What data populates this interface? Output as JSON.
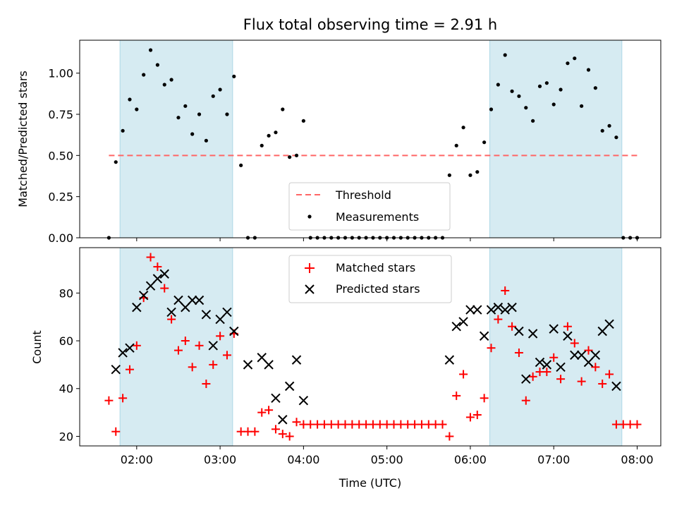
{
  "chart_data": [
    {
      "type": "scatter",
      "title": "Flux total observing time = 2.91 h",
      "xlabel": "",
      "ylabel": "Matched/Predicted stars",
      "xlim": [
        "01:19",
        "08:17"
      ],
      "ylim": [
        0,
        1.2
      ],
      "yticks": [
        "0.00",
        "0.25",
        "0.50",
        "0.75",
        "1.00"
      ],
      "shaded_intervals": [
        [
          "01:48",
          "03:09"
        ],
        [
          "06:14",
          "07:49"
        ]
      ],
      "shade_color": "#add8e6",
      "threshold": {
        "label": "Threshold",
        "y": 0.5,
        "x_start": "01:40",
        "x_end": "08:00",
        "color": "#ff6666"
      },
      "series": [
        {
          "name": "Measurements",
          "color": "#000000",
          "x": [
            "01:40",
            "01:45",
            "01:50",
            "01:55",
            "02:00",
            "02:05",
            "02:10",
            "02:15",
            "02:20",
            "02:25",
            "02:30",
            "02:35",
            "02:40",
            "02:45",
            "02:50",
            "02:55",
            "03:00",
            "03:05",
            "03:10",
            "03:15",
            "03:20",
            "03:25",
            "03:30",
            "03:35",
            "03:40",
            "03:45",
            "03:50",
            "03:55",
            "04:00",
            "04:05",
            "04:10",
            "04:15",
            "04:20",
            "04:25",
            "04:30",
            "04:35",
            "04:40",
            "04:45",
            "04:50",
            "04:55",
            "05:00",
            "05:05",
            "05:10",
            "05:15",
            "05:20",
            "05:25",
            "05:30",
            "05:35",
            "05:40",
            "05:45",
            "05:50",
            "05:55",
            "06:00",
            "06:05",
            "06:10",
            "06:15",
            "06:20",
            "06:25",
            "06:30",
            "06:35",
            "06:40",
            "06:45",
            "06:50",
            "06:55",
            "07:00",
            "07:05",
            "07:10",
            "07:15",
            "07:20",
            "07:25",
            "07:30",
            "07:35",
            "07:40",
            "07:45",
            "07:50",
            "07:55",
            "08:00"
          ],
          "y": [
            0.0,
            0.46,
            0.65,
            0.84,
            0.78,
            0.99,
            1.14,
            1.05,
            0.93,
            0.96,
            0.73,
            0.8,
            0.63,
            0.75,
            0.59,
            0.86,
            0.9,
            0.75,
            0.98,
            0.44,
            0.0,
            0.0,
            0.56,
            0.62,
            0.64,
            0.78,
            0.49,
            0.5,
            0.71,
            0.0,
            0.0,
            0.0,
            0.0,
            0.0,
            0.0,
            0.0,
            0.0,
            0.0,
            0.0,
            0.0,
            0.0,
            0.0,
            0.0,
            0.0,
            0.0,
            0.0,
            0.0,
            0.0,
            0.0,
            0.38,
            0.56,
            0.67,
            0.38,
            0.4,
            0.58,
            0.78,
            0.93,
            1.11,
            0.89,
            0.86,
            0.79,
            0.71,
            0.92,
            0.94,
            0.81,
            0.9,
            1.06,
            1.09,
            0.8,
            1.02,
            0.91,
            0.65,
            0.68,
            0.61,
            0.0,
            0.0,
            0.0
          ]
        }
      ],
      "legend": {
        "position": "lower center",
        "entries": [
          "Threshold",
          "Measurements"
        ]
      }
    },
    {
      "type": "scatter",
      "title": "",
      "xlabel": "Time (UTC)",
      "ylabel": "Count",
      "xlim": [
        "01:19",
        "08:17"
      ],
      "ylim": [
        16,
        99
      ],
      "yticks": [
        "20",
        "40",
        "60",
        "80"
      ],
      "xticks": [
        "02:00",
        "03:00",
        "04:00",
        "05:00",
        "06:00",
        "07:00",
        "08:00"
      ],
      "shaded_intervals": [
        [
          "01:48",
          "03:09"
        ],
        [
          "06:14",
          "07:49"
        ]
      ],
      "series": [
        {
          "name": "Matched stars",
          "marker": "+",
          "color": "#ff0000",
          "x": [
            "01:40",
            "01:45",
            "01:50",
            "01:55",
            "02:00",
            "02:05",
            "02:10",
            "02:15",
            "02:20",
            "02:25",
            "02:30",
            "02:35",
            "02:40",
            "02:45",
            "02:50",
            "02:55",
            "03:00",
            "03:05",
            "03:10",
            "03:15",
            "03:20",
            "03:25",
            "03:30",
            "03:35",
            "03:40",
            "03:45",
            "03:50",
            "03:55",
            "04:00",
            "04:05",
            "04:10",
            "04:15",
            "04:20",
            "04:25",
            "04:30",
            "04:35",
            "04:40",
            "04:45",
            "04:50",
            "04:55",
            "05:00",
            "05:05",
            "05:10",
            "05:15",
            "05:20",
            "05:25",
            "05:30",
            "05:35",
            "05:40",
            "05:45",
            "05:50",
            "05:55",
            "06:00",
            "06:05",
            "06:10",
            "06:15",
            "06:20",
            "06:25",
            "06:30",
            "06:35",
            "06:40",
            "06:45",
            "06:50",
            "06:55",
            "07:00",
            "07:05",
            "07:10",
            "07:15",
            "07:20",
            "07:25",
            "07:30",
            "07:35",
            "07:40",
            "07:45",
            "07:50",
            "07:55",
            "08:00"
          ],
          "y": [
            35,
            22,
            36,
            48,
            58,
            78,
            95,
            91,
            82,
            69,
            56,
            60,
            49,
            58,
            42,
            50,
            62,
            54,
            63,
            22,
            22,
            22,
            30,
            31,
            23,
            21,
            20,
            26,
            25,
            25,
            25,
            25,
            25,
            25,
            25,
            25,
            25,
            25,
            25,
            25,
            25,
            25,
            25,
            25,
            25,
            25,
            25,
            25,
            25,
            20,
            37,
            46,
            28,
            29,
            36,
            57,
            69,
            81,
            66,
            55,
            35,
            45,
            47,
            47,
            53,
            44,
            66,
            59,
            43,
            56,
            49,
            42,
            46,
            25,
            25,
            25,
            25
          ]
        },
        {
          "name": "Predicted stars",
          "marker": "x",
          "color": "#000000",
          "x": [
            "01:45",
            "01:50",
            "01:55",
            "02:00",
            "02:05",
            "02:10",
            "02:15",
            "02:20",
            "02:25",
            "02:30",
            "02:35",
            "02:40",
            "02:45",
            "02:50",
            "02:55",
            "03:00",
            "03:05",
            "03:10",
            "03:20",
            "03:30",
            "03:35",
            "03:40",
            "03:45",
            "03:50",
            "03:55",
            "04:00",
            "05:45",
            "05:50",
            "05:55",
            "06:00",
            "06:05",
            "06:10",
            "06:15",
            "06:20",
            "06:25",
            "06:30",
            "06:35",
            "06:40",
            "06:45",
            "06:50",
            "06:55",
            "07:00",
            "07:05",
            "07:10",
            "07:15",
            "07:20",
            "07:25",
            "07:30",
            "07:35",
            "07:40",
            "07:45"
          ],
          "y": [
            48,
            55,
            57,
            74,
            79,
            83,
            86,
            88,
            72,
            77,
            74,
            77,
            77,
            71,
            58,
            69,
            72,
            64,
            50,
            53,
            50,
            36,
            27,
            41,
            52,
            35,
            52,
            66,
            68,
            73,
            73,
            62,
            73,
            74,
            73,
            74,
            64,
            44,
            63,
            51,
            50,
            65,
            49,
            62,
            54,
            54,
            51,
            54,
            64,
            67,
            41
          ]
        }
      ],
      "legend": {
        "position": "upper center",
        "entries": [
          "Matched stars",
          "Predicted stars"
        ]
      }
    }
  ]
}
